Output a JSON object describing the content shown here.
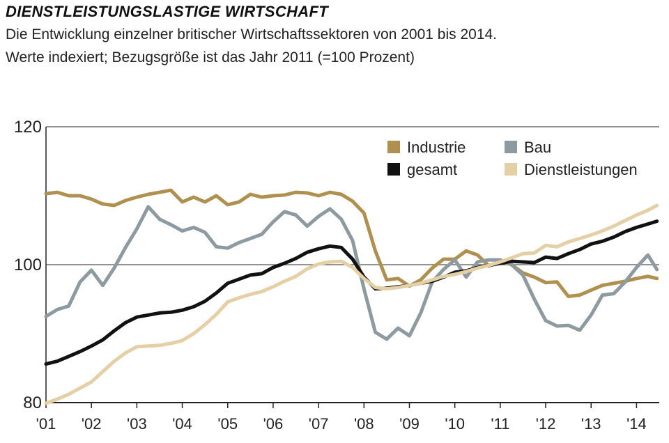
{
  "header": {
    "title": "DIENSTLEISTUNGSLASTIGE WIRTSCHAFT",
    "subtitle_line1": "Die Entwicklung einzelner britischer Wirtschaftssektoren von 2001 bis 2014.",
    "subtitle_line2": "Werte indexiert; Bezugsgröße ist das Jahr 2011 (=100 Prozent)"
  },
  "chart_data": {
    "type": "line",
    "title": "DIENSTLEISTUNGSLASTIGE WIRTSCHAFT",
    "xlabel": "",
    "ylabel": "",
    "xlim": [
      2001,
      2014.5
    ],
    "ylim": [
      80,
      120
    ],
    "y_ticks": [
      80,
      100,
      120
    ],
    "x_tick_labels": [
      "'01",
      "'02",
      "'03",
      "'04",
      "'05",
      "'06",
      "'07",
      "'08",
      "'09",
      "'10",
      "'11",
      "'12",
      "'13",
      "'14"
    ],
    "x_tick_years": [
      2001,
      2002,
      2003,
      2004,
      2005,
      2006,
      2007,
      2008,
      2009,
      2010,
      2011,
      2012,
      2013,
      2014
    ],
    "reference_line": 100,
    "legend_position": "top-right",
    "series": [
      {
        "name": "Industrie",
        "color": "#b0904f",
        "x": [
          2001.0,
          2001.25,
          2001.5,
          2001.75,
          2002.0,
          2002.25,
          2002.5,
          2002.75,
          2003.0,
          2003.25,
          2003.5,
          2003.75,
          2004.0,
          2004.25,
          2004.5,
          2004.75,
          2005.0,
          2005.25,
          2005.5,
          2005.75,
          2006.0,
          2006.25,
          2006.5,
          2006.75,
          2007.0,
          2007.25,
          2007.5,
          2007.75,
          2008.0,
          2008.25,
          2008.5,
          2008.75,
          2009.0,
          2009.25,
          2009.5,
          2009.75,
          2010.0,
          2010.25,
          2010.5,
          2010.75,
          2011.0,
          2011.25,
          2011.5,
          2011.75,
          2012.0,
          2012.25,
          2012.5,
          2012.75,
          2013.0,
          2013.25,
          2013.5,
          2013.75,
          2014.0,
          2014.25,
          2014.45
        ],
        "values": [
          110.3,
          110.5,
          110.0,
          110.0,
          109.5,
          108.8,
          108.6,
          109.3,
          109.8,
          110.2,
          110.5,
          110.8,
          109.1,
          109.8,
          109.1,
          110.0,
          108.7,
          109.1,
          110.2,
          109.8,
          110.0,
          110.1,
          110.5,
          110.4,
          110.0,
          110.5,
          110.2,
          109.2,
          107.5,
          102.0,
          97.8,
          98.0,
          96.9,
          97.8,
          99.5,
          100.8,
          100.8,
          102.0,
          101.4,
          99.8,
          100.5,
          100.0,
          98.8,
          98.2,
          97.4,
          97.5,
          95.4,
          95.6,
          96.3,
          97.0,
          97.3,
          97.6,
          98.0,
          98.3,
          98.0
        ]
      },
      {
        "name": "Bau",
        "color": "#8d9ba1",
        "x": [
          2001.0,
          2001.25,
          2001.5,
          2001.75,
          2002.0,
          2002.25,
          2002.5,
          2002.75,
          2003.0,
          2003.25,
          2003.5,
          2003.75,
          2004.0,
          2004.25,
          2004.5,
          2004.75,
          2005.0,
          2005.25,
          2005.5,
          2005.75,
          2006.0,
          2006.25,
          2006.5,
          2006.75,
          2007.0,
          2007.25,
          2007.5,
          2007.75,
          2008.0,
          2008.25,
          2008.5,
          2008.75,
          2009.0,
          2009.25,
          2009.5,
          2009.75,
          2010.0,
          2010.25,
          2010.5,
          2010.75,
          2011.0,
          2011.25,
          2011.5,
          2011.75,
          2012.0,
          2012.25,
          2012.5,
          2012.75,
          2013.0,
          2013.25,
          2013.5,
          2013.75,
          2014.0,
          2014.25,
          2014.45
        ],
        "values": [
          92.5,
          93.5,
          94.0,
          97.5,
          99.2,
          97.0,
          99.5,
          102.5,
          105.2,
          108.4,
          106.6,
          105.8,
          104.9,
          105.4,
          104.7,
          102.6,
          102.4,
          103.2,
          103.8,
          104.4,
          106.2,
          107.7,
          107.2,
          105.6,
          107.0,
          108.1,
          106.6,
          103.5,
          96.5,
          90.2,
          89.2,
          90.8,
          89.7,
          93.0,
          97.5,
          99.3,
          100.7,
          98.2,
          100.4,
          100.7,
          100.7,
          100.0,
          98.5,
          95.0,
          91.9,
          91.1,
          91.2,
          90.5,
          92.7,
          95.6,
          95.8,
          97.5,
          99.6,
          101.4,
          99.3
        ]
      },
      {
        "name": "gesamt",
        "color": "#111111",
        "x": [
          2001.0,
          2001.25,
          2001.5,
          2001.75,
          2002.0,
          2002.25,
          2002.5,
          2002.75,
          2003.0,
          2003.25,
          2003.5,
          2003.75,
          2004.0,
          2004.25,
          2004.5,
          2004.75,
          2005.0,
          2005.25,
          2005.5,
          2005.75,
          2006.0,
          2006.25,
          2006.5,
          2006.75,
          2007.0,
          2007.25,
          2007.5,
          2007.75,
          2008.0,
          2008.25,
          2008.5,
          2008.75,
          2009.0,
          2009.25,
          2009.5,
          2009.75,
          2010.0,
          2010.25,
          2010.5,
          2010.75,
          2011.0,
          2011.25,
          2011.5,
          2011.75,
          2012.0,
          2012.25,
          2012.5,
          2012.75,
          2013.0,
          2013.25,
          2013.5,
          2013.75,
          2014.0,
          2014.25,
          2014.45
        ],
        "values": [
          85.6,
          86.0,
          86.7,
          87.4,
          88.2,
          89.1,
          90.4,
          91.6,
          92.4,
          92.7,
          93.0,
          93.1,
          93.4,
          93.9,
          94.7,
          95.9,
          97.3,
          97.9,
          98.5,
          98.7,
          99.6,
          100.2,
          100.9,
          101.8,
          102.3,
          102.7,
          102.5,
          100.8,
          98.2,
          96.5,
          96.6,
          96.8,
          97.0,
          97.3,
          97.6,
          98.2,
          98.9,
          99.1,
          99.6,
          99.9,
          100.2,
          100.5,
          100.4,
          100.3,
          101.1,
          100.9,
          101.6,
          102.2,
          103.0,
          103.4,
          104.0,
          104.8,
          105.4,
          105.9,
          106.3
        ]
      },
      {
        "name": "Dienstleistungen",
        "color": "#e5d0a6",
        "x": [
          2001.0,
          2001.25,
          2001.5,
          2001.75,
          2002.0,
          2002.25,
          2002.5,
          2002.75,
          2003.0,
          2003.25,
          2003.5,
          2003.75,
          2004.0,
          2004.25,
          2004.5,
          2004.75,
          2005.0,
          2005.25,
          2005.5,
          2005.75,
          2006.0,
          2006.25,
          2006.5,
          2006.75,
          2007.0,
          2007.25,
          2007.5,
          2007.75,
          2008.0,
          2008.25,
          2008.5,
          2008.75,
          2009.0,
          2009.25,
          2009.5,
          2009.75,
          2010.0,
          2010.25,
          2010.5,
          2010.75,
          2011.0,
          2011.25,
          2011.5,
          2011.75,
          2012.0,
          2012.25,
          2012.5,
          2012.75,
          2013.0,
          2013.25,
          2013.5,
          2013.75,
          2014.0,
          2014.25,
          2014.45
        ],
        "values": [
          79.9,
          80.5,
          81.2,
          82.1,
          83.0,
          84.5,
          86.0,
          87.2,
          88.1,
          88.2,
          88.3,
          88.6,
          89.0,
          90.0,
          91.3,
          92.8,
          94.6,
          95.2,
          95.7,
          96.1,
          96.8,
          97.6,
          98.3,
          99.4,
          100.1,
          100.4,
          100.5,
          99.6,
          98.0,
          96.7,
          96.5,
          96.7,
          97.0,
          97.3,
          97.8,
          98.3,
          98.6,
          99.0,
          99.5,
          99.9,
          100.4,
          101.0,
          101.6,
          101.7,
          102.8,
          102.6,
          103.3,
          103.8,
          104.3,
          104.9,
          105.6,
          106.4,
          107.2,
          107.9,
          108.6
        ]
      }
    ]
  }
}
